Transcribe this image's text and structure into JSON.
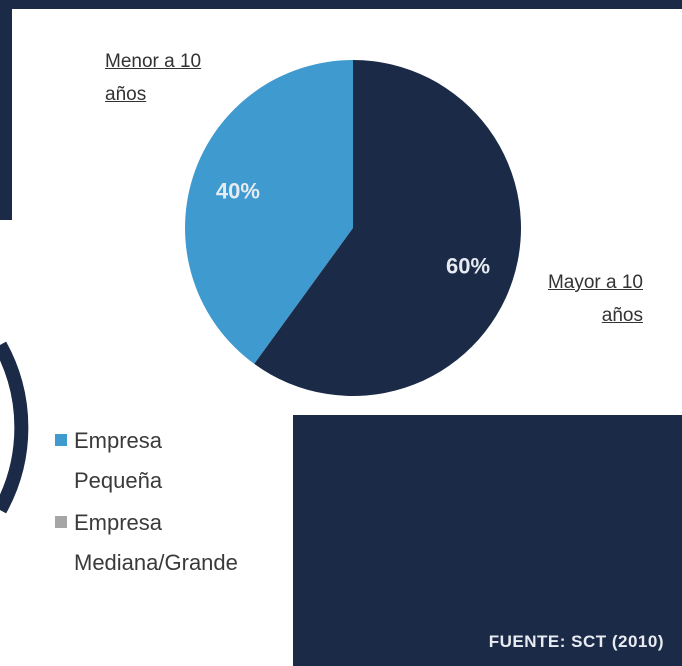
{
  "chart_data": {
    "type": "pie",
    "categories": [
      "Empresa Pequeña",
      "Empresa Mediana/Grande"
    ],
    "slice_labels": [
      "Menor a 10 años",
      "Mayor a 10 años"
    ],
    "values": [
      40,
      60
    ],
    "value_labels": [
      "40%",
      "60%"
    ],
    "colors": [
      "#3f9ad0",
      "#1b2a47"
    ],
    "legend_colors": [
      "#3f9ad0",
      "#a6a6a6"
    ]
  },
  "source": "FUENTE: SCT (2010)"
}
